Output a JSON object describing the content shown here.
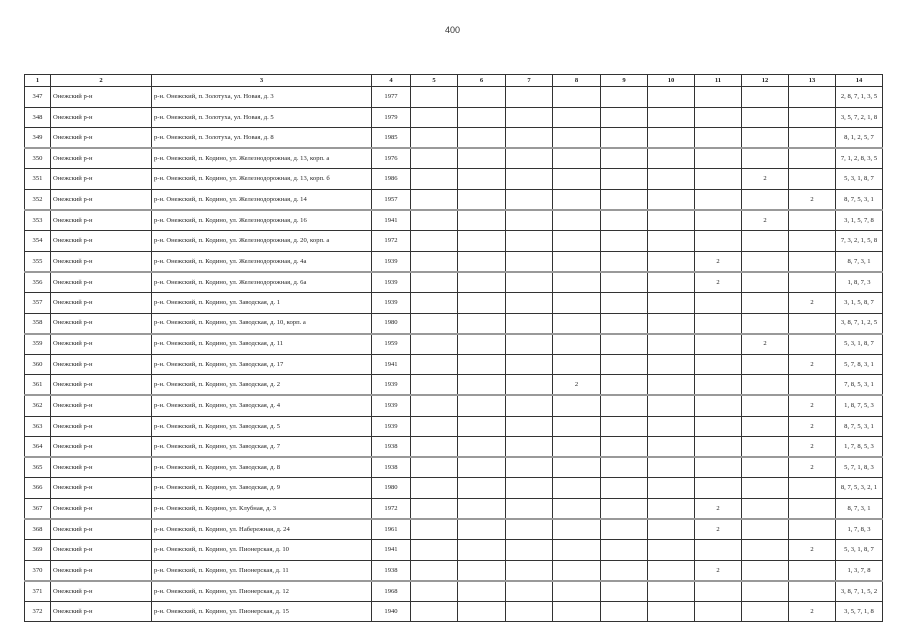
{
  "page_number": "400",
  "table": {
    "headers": [
      "1",
      "2",
      "3",
      "4",
      "5",
      "6",
      "7",
      "8",
      "9",
      "10",
      "11",
      "12",
      "13",
      "14"
    ],
    "rows": [
      [
        "347",
        "Онежский р-н",
        "р-н. Онежский, п. Золотуха, ул. Новая, д. 3",
        "1977",
        "",
        "",
        "",
        "",
        "",
        "",
        "",
        "",
        "",
        "2, 8, 7, 1, 3, 5"
      ],
      [
        "348",
        "Онежский р-н",
        "р-н. Онежский, п. Золотуха, ул. Новая, д. 5",
        "1979",
        "",
        "",
        "",
        "",
        "",
        "",
        "",
        "",
        "",
        "3, 5, 7, 2, 1, 8"
      ],
      [
        "349",
        "Онежский р-н",
        "р-н. Онежский, п. Золотуха, ул. Новая, д. 8",
        "1985",
        "",
        "",
        "",
        "",
        "",
        "",
        "",
        "",
        "",
        "8, 1, 2, 5, 7"
      ],
      [
        "350",
        "Онежский р-н",
        "р-н. Онежский, п. Кодино, ул. Железнодорожная, д. 13, корп. а",
        "1976",
        "",
        "",
        "",
        "",
        "",
        "",
        "",
        "",
        "",
        "7, 1, 2, 8, 3, 5"
      ],
      [
        "351",
        "Онежский р-н",
        "р-н. Онежский, п. Кодино, ул. Железнодорожная, д. 13, корп. б",
        "1986",
        "",
        "",
        "",
        "",
        "",
        "",
        "",
        "2",
        "",
        "5, 3, 1, 8, 7"
      ],
      [
        "352",
        "Онежский р-н",
        "р-н. Онежский, п. Кодино, ул. Железнодорожная, д. 14",
        "1957",
        "",
        "",
        "",
        "",
        "",
        "",
        "",
        "",
        "2",
        "8, 7, 5, 3, 1"
      ],
      [
        "353",
        "Онежский р-н",
        "р-н. Онежский, п. Кодино, ул. Железнодорожная, д. 16",
        "1941",
        "",
        "",
        "",
        "",
        "",
        "",
        "",
        "2",
        "",
        "3, 1, 5, 7, 8"
      ],
      [
        "354",
        "Онежский р-н",
        "р-н. Онежский, п. Кодино, ул. Железнодорожная, д. 20, корп. а",
        "1972",
        "",
        "",
        "",
        "",
        "",
        "",
        "",
        "",
        "",
        "7, 3, 2, 1, 5, 8"
      ],
      [
        "355",
        "Онежский р-н",
        "р-н. Онежский, п. Кодино, ул. Железнодорожная, д. 4а",
        "1939",
        "",
        "",
        "",
        "",
        "",
        "",
        "2",
        "",
        "",
        "8, 7, 3, 1"
      ],
      [
        "356",
        "Онежский р-н",
        "р-н. Онежский, п. Кодино, ул. Железнодорожная, д. 6а",
        "1939",
        "",
        "",
        "",
        "",
        "",
        "",
        "2",
        "",
        "",
        "1, 8, 7, 3"
      ],
      [
        "357",
        "Онежский р-н",
        "р-н. Онежский, п. Кодино, ул. Заводская, д. 1",
        "1939",
        "",
        "",
        "",
        "",
        "",
        "",
        "",
        "",
        "2",
        "3, 1, 5, 8, 7"
      ],
      [
        "358",
        "Онежский р-н",
        "р-н. Онежский, п. Кодино, ул. Заводская, д. 10, корп. а",
        "1980",
        "",
        "",
        "",
        "",
        "",
        "",
        "",
        "",
        "",
        "3, 8, 7, 1, 2, 5"
      ],
      [
        "359",
        "Онежский р-н",
        "р-н. Онежский, п. Кодино, ул. Заводская, д. 11",
        "1959",
        "",
        "",
        "",
        "",
        "",
        "",
        "",
        "2",
        "",
        "5, 3, 1, 8, 7"
      ],
      [
        "360",
        "Онежский р-н",
        "р-н. Онежский, п. Кодино, ул. Заводская, д. 17",
        "1941",
        "",
        "",
        "",
        "",
        "",
        "",
        "",
        "",
        "2",
        "5, 7, 8, 3, 1"
      ],
      [
        "361",
        "Онежский р-н",
        "р-н. Онежский, п. Кодино, ул. Заводская, д. 2",
        "1939",
        "",
        "",
        "",
        "2",
        "",
        "",
        "",
        "",
        "",
        "7, 8, 5, 3, 1"
      ],
      [
        "362",
        "Онежский р-н",
        "р-н. Онежский, п. Кодино, ул. Заводская, д. 4",
        "1939",
        "",
        "",
        "",
        "",
        "",
        "",
        "",
        "",
        "2",
        "1, 8, 7, 5, 3"
      ],
      [
        "363",
        "Онежский р-н",
        "р-н. Онежский, п. Кодино, ул. Заводская, д. 5",
        "1939",
        "",
        "",
        "",
        "",
        "",
        "",
        "",
        "",
        "2",
        "8, 7, 5, 3, 1"
      ],
      [
        "364",
        "Онежский р-н",
        "р-н. Онежский, п. Кодино, ул. Заводская, д. 7",
        "1938",
        "",
        "",
        "",
        "",
        "",
        "",
        "",
        "",
        "2",
        "1, 7, 8, 5, 3"
      ],
      [
        "365",
        "Онежский р-н",
        "р-н. Онежский, п. Кодино, ул. Заводская, д. 8",
        "1938",
        "",
        "",
        "",
        "",
        "",
        "",
        "",
        "",
        "2",
        "5, 7, 1, 8, 3"
      ],
      [
        "366",
        "Онежский р-н",
        "р-н. Онежский, п. Кодино, ул. Заводская, д. 9",
        "1980",
        "",
        "",
        "",
        "",
        "",
        "",
        "",
        "",
        "",
        "8, 7, 5, 3, 2, 1"
      ],
      [
        "367",
        "Онежский р-н",
        "р-н. Онежский, п. Кодино, ул. Клубная, д. 3",
        "1972",
        "",
        "",
        "",
        "",
        "",
        "",
        "2",
        "",
        "",
        "8, 7, 3, 1"
      ],
      [
        "368",
        "Онежский р-н",
        "р-н. Онежский, п. Кодино, ул. Набережная, д. 24",
        "1961",
        "",
        "",
        "",
        "",
        "",
        "",
        "2",
        "",
        "",
        "1, 7, 8, 3"
      ],
      [
        "369",
        "Онежский р-н",
        "р-н. Онежский, п. Кодино, ул. Пионерская, д. 10",
        "1941",
        "",
        "",
        "",
        "",
        "",
        "",
        "",
        "",
        "2",
        "5, 3, 1, 8, 7"
      ],
      [
        "370",
        "Онежский р-н",
        "р-н. Онежский, п. Кодино, ул. Пионерская, д. 11",
        "1938",
        "",
        "",
        "",
        "",
        "",
        "",
        "2",
        "",
        "",
        "1, 3, 7, 8"
      ],
      [
        "371",
        "Онежский р-н",
        "р-н. Онежский, п. Кодино, ул. Пионерская, д. 12",
        "1968",
        "",
        "",
        "",
        "",
        "",
        "",
        "",
        "",
        "",
        "3, 8, 7, 1, 5, 2"
      ],
      [
        "372",
        "Онежский р-н",
        "р-н. Онежский, п. Кодино, ул. Пионерская, д. 15",
        "1940",
        "",
        "",
        "",
        "",
        "",
        "",
        "",
        "",
        "2",
        "3, 5, 7, 1, 8"
      ]
    ]
  }
}
